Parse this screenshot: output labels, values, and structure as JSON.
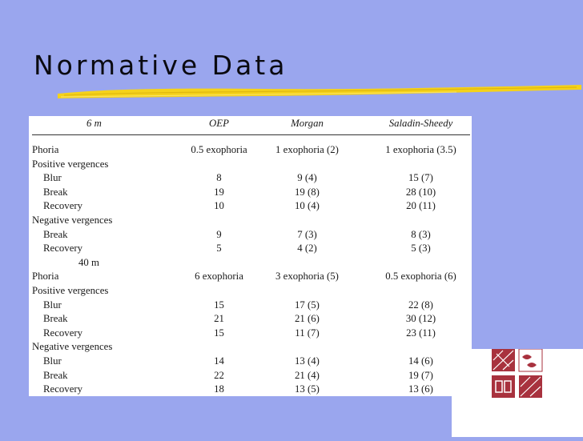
{
  "slide": {
    "title": "Normative Data"
  },
  "table": {
    "columns": [
      "6 m",
      "OEP",
      "Morgan",
      "Saladin-Sheedy"
    ],
    "rows": [
      {
        "label": "Phoria",
        "indent": 0,
        "oep": "0.5 exophoria",
        "morgan": "1 exophoria (2)",
        "saladin": "1 exophoria (3.5)"
      },
      {
        "label": "Positive vergences",
        "indent": 0,
        "oep": "",
        "morgan": "",
        "saladin": ""
      },
      {
        "label": "Blur",
        "indent": 1,
        "oep": "8",
        "morgan": "9 (4)",
        "saladin": "15 (7)"
      },
      {
        "label": "Break",
        "indent": 1,
        "oep": "19",
        "morgan": "19 (8)",
        "saladin": "28 (10)"
      },
      {
        "label": "Recovery",
        "indent": 1,
        "oep": "10",
        "morgan": "10 (4)",
        "saladin": "20 (11)"
      },
      {
        "label": "Negative vergences",
        "indent": 0,
        "oep": "",
        "morgan": "",
        "saladin": ""
      },
      {
        "label": "Break",
        "indent": 1,
        "oep": "9",
        "morgan": "7 (3)",
        "saladin": "8 (3)"
      },
      {
        "label": "Recovery",
        "indent": 1,
        "oep": "5",
        "morgan": "4 (2)",
        "saladin": "5 (3)"
      },
      {
        "label": "40 m",
        "indent": 2,
        "oep": "",
        "morgan": "",
        "saladin": ""
      },
      {
        "label": "Phoria",
        "indent": 0,
        "oep": "6 exophoria",
        "morgan": "3 exophoria (5)",
        "saladin": "0.5 exophoria (6)"
      },
      {
        "label": "Positive vergences",
        "indent": 0,
        "oep": "",
        "morgan": "",
        "saladin": ""
      },
      {
        "label": "Blur",
        "indent": 1,
        "oep": "15",
        "morgan": "17 (5)",
        "saladin": "22 (8)"
      },
      {
        "label": "Break",
        "indent": 1,
        "oep": "21",
        "morgan": "21 (6)",
        "saladin": "30 (12)"
      },
      {
        "label": "Recovery",
        "indent": 1,
        "oep": "15",
        "morgan": "11 (7)",
        "saladin": "23 (11)"
      },
      {
        "label": "Negative vergences",
        "indent": 0,
        "oep": "",
        "morgan": "",
        "saladin": ""
      },
      {
        "label": "Blur",
        "indent": 1,
        "oep": "14",
        "morgan": "13 (4)",
        "saladin": "14 (6)"
      },
      {
        "label": "Break",
        "indent": 1,
        "oep": "22",
        "morgan": "21 (4)",
        "saladin": "19 (7)"
      },
      {
        "label": "Recovery",
        "indent": 1,
        "oep": "18",
        "morgan": "13 (5)",
        "saladin": "13 (6)"
      }
    ]
  },
  "colors": {
    "background": "#9aa6ee",
    "underline": "#f5d21a",
    "logo_red": "#a8323e"
  }
}
